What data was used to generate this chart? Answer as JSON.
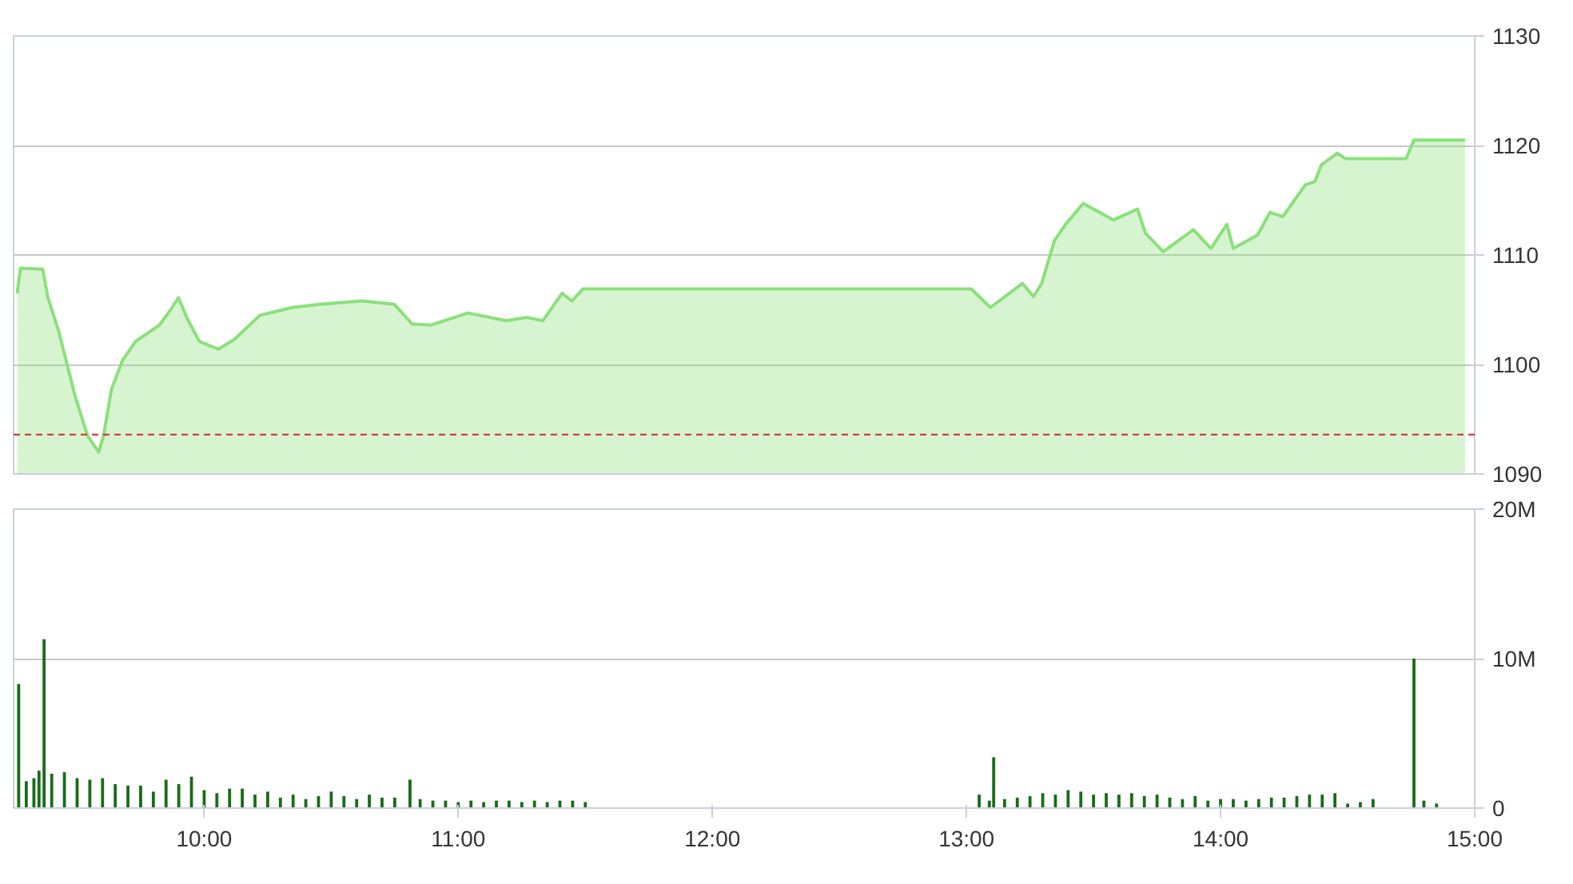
{
  "chart_data": [
    {
      "type": "area",
      "x": [
        9.264,
        9.277,
        9.365,
        9.384,
        9.428,
        9.491,
        9.541,
        9.585,
        9.604,
        9.635,
        9.679,
        9.73,
        9.824,
        9.868,
        9.899,
        9.931,
        9.981,
        10.057,
        10.119,
        10.22,
        10.346,
        10.453,
        10.623,
        10.748,
        10.818,
        10.893,
        11.038,
        11.189,
        11.27,
        11.333,
        11.409,
        11.447,
        11.491,
        13.019,
        13.094,
        13.22,
        13.264,
        13.296,
        13.346,
        13.39,
        13.459,
        13.579,
        13.673,
        13.704,
        13.774,
        13.893,
        13.962,
        14.025,
        14.05,
        14.145,
        14.195,
        14.245,
        14.333,
        14.371,
        14.396,
        14.459,
        14.491,
        14.73,
        14.761,
        14.962
      ],
      "values": [
        1106.5,
        1108.8,
        1108.7,
        1106.2,
        1103,
        1097.2,
        1093.5,
        1092,
        1093.5,
        1097.7,
        1100.4,
        1102.1,
        1103.6,
        1105,
        1106.1,
        1104.3,
        1102.1,
        1101.4,
        1102.3,
        1104.5,
        1105.2,
        1105.5,
        1105.8,
        1105.5,
        1103.7,
        1103.6,
        1104.7,
        1104,
        1104.3,
        1104,
        1106.5,
        1105.8,
        1106.9,
        1106.9,
        1105.2,
        1107.4,
        1106.2,
        1107.4,
        1111.3,
        1112.8,
        1114.7,
        1113.2,
        1114.2,
        1112,
        1110.3,
        1112.3,
        1110.6,
        1112.8,
        1110.6,
        1111.8,
        1113.9,
        1113.5,
        1116.4,
        1116.7,
        1118.2,
        1119.3,
        1118.8,
        1118.8,
        1120.5,
        1120.5
      ],
      "color": "#8be07c",
      "xlim": [
        9.25,
        15
      ],
      "ylim": [
        1090,
        1130
      ],
      "yticks": [
        1090,
        1100,
        1110,
        1120,
        1130
      ],
      "grid": "y",
      "tick_labels": "y",
      "ref_lines": [
        {
          "axis": "y",
          "value": 1093.6,
          "color": "#d62728",
          "line_style": "dashed"
        }
      ]
    },
    {
      "type": "bar",
      "x": [
        9.27,
        9.3,
        9.33,
        9.35,
        9.37,
        9.4,
        9.45,
        9.5,
        9.55,
        9.6,
        9.65,
        9.7,
        9.75,
        9.8,
        9.85,
        9.9,
        9.95,
        10.0,
        10.05,
        10.1,
        10.15,
        10.2,
        10.25,
        10.3,
        10.35,
        10.4,
        10.45,
        10.5,
        10.55,
        10.6,
        10.65,
        10.7,
        10.75,
        10.81,
        10.85,
        10.9,
        10.95,
        11.0,
        11.05,
        11.1,
        11.15,
        11.2,
        11.25,
        11.3,
        11.35,
        11.4,
        11.45,
        11.5,
        13.05,
        13.09,
        13.107,
        13.15,
        13.2,
        13.25,
        13.3,
        13.35,
        13.4,
        13.45,
        13.5,
        13.55,
        13.6,
        13.65,
        13.7,
        13.75,
        13.8,
        13.85,
        13.9,
        13.95,
        14.0,
        14.05,
        14.1,
        14.15,
        14.2,
        14.25,
        14.3,
        14.35,
        14.4,
        14.45,
        14.5,
        14.55,
        14.6,
        14.761,
        14.8,
        14.85
      ],
      "values": [
        8.3,
        1.8,
        2.0,
        2.5,
        11.3,
        2.3,
        2.4,
        2.0,
        1.9,
        2.0,
        1.6,
        1.5,
        1.5,
        1.1,
        1.9,
        1.6,
        2.1,
        1.2,
        1.0,
        1.3,
        1.3,
        0.9,
        1.1,
        0.7,
        0.9,
        0.6,
        0.8,
        1.1,
        0.8,
        0.6,
        0.9,
        0.7,
        0.7,
        1.9,
        0.6,
        0.5,
        0.5,
        0.4,
        0.5,
        0.4,
        0.5,
        0.5,
        0.4,
        0.5,
        0.4,
        0.5,
        0.5,
        0.4,
        0.9,
        0.5,
        3.4,
        0.6,
        0.7,
        0.8,
        1.0,
        0.9,
        1.2,
        1.1,
        0.9,
        1.0,
        0.9,
        1.0,
        0.8,
        0.9,
        0.7,
        0.6,
        0.8,
        0.5,
        0.6,
        0.6,
        0.5,
        0.6,
        0.7,
        0.7,
        0.8,
        0.9,
        0.9,
        1.0,
        0.3,
        0.4,
        0.6,
        10.0,
        0.5,
        0.3
      ],
      "color": "#1a6b1a",
      "xlim": [
        9.25,
        15
      ],
      "xticks": [
        {
          "value": 10,
          "label": "10:00"
        },
        {
          "value": 11,
          "label": "11:00"
        },
        {
          "value": 12,
          "label": "12:00"
        },
        {
          "value": 13,
          "label": "13:00"
        },
        {
          "value": 14,
          "label": "14:00"
        },
        {
          "value": 15,
          "label": "15:00"
        }
      ],
      "ylim": [
        0,
        20
      ],
      "yticks": [
        {
          "value": 0,
          "label": "0"
        },
        {
          "value": 10,
          "label": "10M"
        },
        {
          "value": 20,
          "label": "20M"
        }
      ],
      "grid": "y"
    }
  ]
}
